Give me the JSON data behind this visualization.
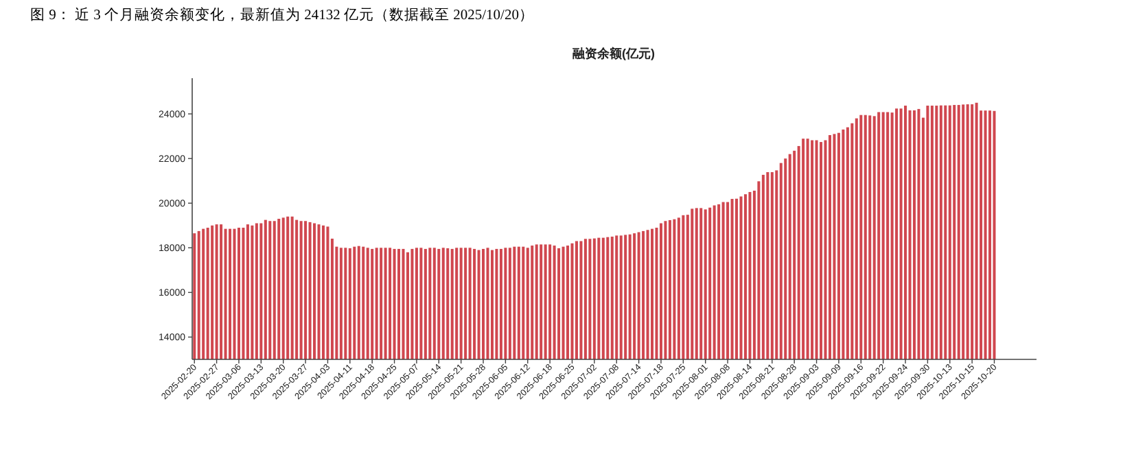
{
  "chart_data": {
    "type": "bar",
    "title": "融资余额(亿元)",
    "annotations": [
      "图 9：  近 3 个月融资余额变化，最新值为 24132 亿元（数据截至 2025/10/20）"
    ],
    "categories": [
      "2025-02-20",
      null,
      null,
      null,
      null,
      "2025-02-27",
      null,
      null,
      null,
      null,
      "2025-03-06",
      null,
      null,
      null,
      null,
      "2025-03-13",
      null,
      null,
      null,
      null,
      "2025-03-20",
      null,
      null,
      null,
      null,
      "2025-03-27",
      null,
      null,
      null,
      null,
      "2025-04-03",
      null,
      null,
      null,
      null,
      "2025-04-11",
      null,
      null,
      null,
      null,
      "2025-04-18",
      null,
      null,
      null,
      null,
      "2025-04-25",
      null,
      null,
      null,
      null,
      "2025-05-07",
      null,
      null,
      null,
      null,
      "2025-05-14",
      null,
      null,
      null,
      null,
      "2025-05-21",
      null,
      null,
      null,
      null,
      "2025-05-28",
      null,
      null,
      null,
      null,
      "2025-06-05",
      null,
      null,
      null,
      null,
      "2025-06-12",
      null,
      null,
      null,
      null,
      "2025-06-18",
      null,
      null,
      null,
      null,
      "2025-06-25",
      null,
      null,
      null,
      null,
      "2025-07-02",
      null,
      null,
      null,
      null,
      "2025-07-08",
      null,
      null,
      null,
      null,
      "2025-07-14",
      null,
      null,
      null,
      null,
      "2025-07-18",
      null,
      null,
      null,
      null,
      "2025-07-25",
      null,
      null,
      null,
      null,
      "2025-08-01",
      null,
      null,
      null,
      null,
      "2025-08-08",
      null,
      null,
      null,
      null,
      "2025-08-14",
      null,
      null,
      null,
      null,
      "2025-08-21",
      null,
      null,
      null,
      null,
      "2025-08-28",
      null,
      null,
      null,
      null,
      "2025-09-03",
      null,
      null,
      null,
      null,
      "2025-09-09",
      null,
      null,
      null,
      null,
      "2025-09-16",
      null,
      null,
      null,
      null,
      "2025-09-22",
      null,
      null,
      null,
      null,
      "2025-09-24",
      null,
      null,
      null,
      null,
      "2025-09-30",
      null,
      null,
      null,
      null,
      "2025-10-13",
      null,
      null,
      null,
      null,
      "2025-10-15",
      null,
      null,
      null,
      null,
      "2025-10-20"
    ],
    "values": [
      18650,
      18750,
      18850,
      18900,
      19000,
      19050,
      19050,
      18850,
      18850,
      18850,
      18900,
      18900,
      19050,
      19000,
      19100,
      19100,
      19250,
      19200,
      19200,
      19300,
      19350,
      19400,
      19400,
      19250,
      19200,
      19200,
      19150,
      19100,
      19050,
      19000,
      18950,
      18410,
      18050,
      18000,
      18000,
      17980,
      18050,
      18080,
      18050,
      18000,
      17950,
      18000,
      18000,
      18000,
      18000,
      17950,
      17950,
      17950,
      17800,
      17950,
      18000,
      18000,
      17950,
      18000,
      18000,
      17950,
      18000,
      17980,
      17950,
      18000,
      18000,
      18000,
      18000,
      17950,
      17900,
      17950,
      18000,
      17900,
      17950,
      17950,
      18000,
      18000,
      18050,
      18050,
      18050,
      18000,
      18100,
      18150,
      18150,
      18150,
      18150,
      18100,
      17980,
      18050,
      18100,
      18200,
      18300,
      18300,
      18400,
      18400,
      18420,
      18450,
      18450,
      18480,
      18500,
      18550,
      18550,
      18580,
      18600,
      18650,
      18700,
      18750,
      18800,
      18850,
      18900,
      19100,
      19200,
      19240,
      19280,
      19350,
      19460,
      19480,
      19750,
      19780,
      19780,
      19720,
      19800,
      19900,
      19950,
      20050,
      20050,
      20190,
      20200,
      20300,
      20400,
      20500,
      20560,
      20980,
      21270,
      21390,
      21390,
      21470,
      21800,
      22000,
      22200,
      22350,
      22560,
      22890,
      22890,
      22820,
      22820,
      22740,
      22820,
      23050,
      23100,
      23150,
      23300,
      23400,
      23580,
      23800,
      23950,
      23950,
      23930,
      23900,
      24080,
      24080,
      24080,
      24060,
      24240,
      24240,
      24370,
      24160,
      24160,
      24220,
      23830,
      24370,
      24370,
      24370,
      24380,
      24380,
      24380,
      24400,
      24400,
      24420,
      24430,
      24430,
      24500,
      24150,
      24150,
      24150,
      24132
    ],
    "color": "#d0474f",
    "ylim": [
      13000,
      25600
    ],
    "yticks": [
      14000,
      16000,
      18000,
      20000,
      22000,
      24000
    ]
  }
}
